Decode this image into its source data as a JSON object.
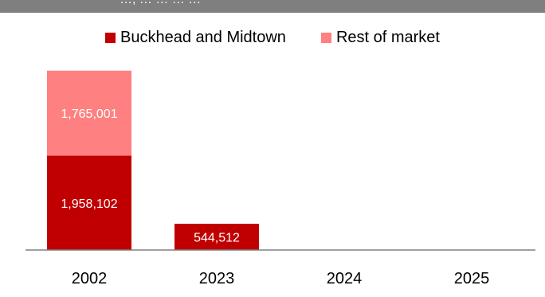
{
  "title": "…, … … … …",
  "colors": {
    "buckhead": "#c00000",
    "rest": "#ff8080",
    "header": "#7f7f7f",
    "axis": "#808080"
  },
  "chart_data": {
    "type": "bar",
    "stacked": true,
    "categories": [
      "2002",
      "2023",
      "2024",
      "2025"
    ],
    "series": [
      {
        "name": "Buckhead and Midtown",
        "values": [
          1958102,
          544512,
          0,
          0
        ]
      },
      {
        "name": "Rest of market",
        "values": [
          1765001,
          0,
          0,
          0
        ]
      }
    ],
    "ylim": [
      0,
      4000000
    ],
    "legend": "top-center",
    "grid": false
  }
}
